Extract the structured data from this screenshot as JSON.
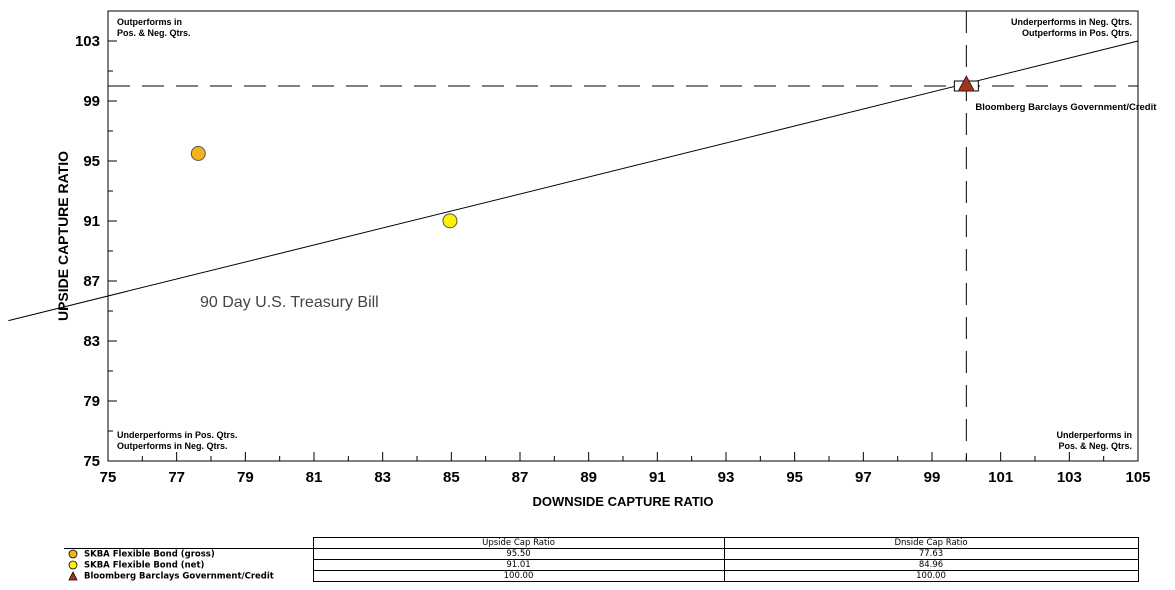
{
  "chart_data": {
    "type": "scatter",
    "xlabel": "DOWNSIDE CAPTURE RATIO",
    "ylabel": "UPSIDE CAPTURE RATIO",
    "xlim": [
      75,
      105
    ],
    "ylim": [
      75,
      105
    ],
    "x_ticks": [
      "75",
      "77",
      "79",
      "81",
      "83",
      "85",
      "87",
      "89",
      "91",
      "93",
      "95",
      "97",
      "99",
      "101",
      "103",
      "105"
    ],
    "y_ticks": [
      "75",
      "79",
      "83",
      "87",
      "91",
      "95",
      "99",
      "103"
    ],
    "reference_lines": {
      "x": 100,
      "y": 100,
      "style": "dashed"
    },
    "regression_line": {
      "label": "90 Day U.S. Treasury Bill",
      "points": [
        [
          75,
          86
        ],
        [
          105,
          103
        ]
      ]
    },
    "quadrant_labels": {
      "top_left": [
        "Outperforms in",
        "Pos. & Neg. Qtrs."
      ],
      "top_right": [
        "Underperforms in Neg. Qtrs.",
        "Outperforms in Pos. Qtrs."
      ],
      "bottom_left": [
        "Underperforms in Pos. Qtrs.",
        "Outperforms in Neg. Qtrs."
      ],
      "bottom_right": [
        "Underperforms in",
        "Pos. & Neg. Qtrs."
      ]
    },
    "series": [
      {
        "name": "SKBA Flexible Bond (gross)",
        "marker": "circle",
        "color": "#F5B319",
        "x": 77.63,
        "y": 95.5
      },
      {
        "name": "SKBA Flexible Bond (net)",
        "marker": "circle",
        "color": "#FFF200",
        "x": 84.96,
        "y": 91.01
      },
      {
        "name": "Bloomberg Barclays Government/Credit",
        "marker": "triangle",
        "color": "#A0361B",
        "x": 100.0,
        "y": 100.0
      }
    ],
    "point_label": "Bloomberg Barclays Government/Credit"
  },
  "table": {
    "headers": [
      "Upside Cap Ratio",
      "Dnside Cap Ratio"
    ],
    "rows": [
      {
        "name": "SKBA Flexible Bond (gross)",
        "upside": "95.50",
        "downside": "77.63"
      },
      {
        "name": "SKBA Flexible Bond (net)",
        "upside": "91.01",
        "downside": "84.96"
      },
      {
        "name": "Bloomberg Barclays Government/Credit",
        "upside": "100.00",
        "downside": "100.00"
      }
    ]
  }
}
